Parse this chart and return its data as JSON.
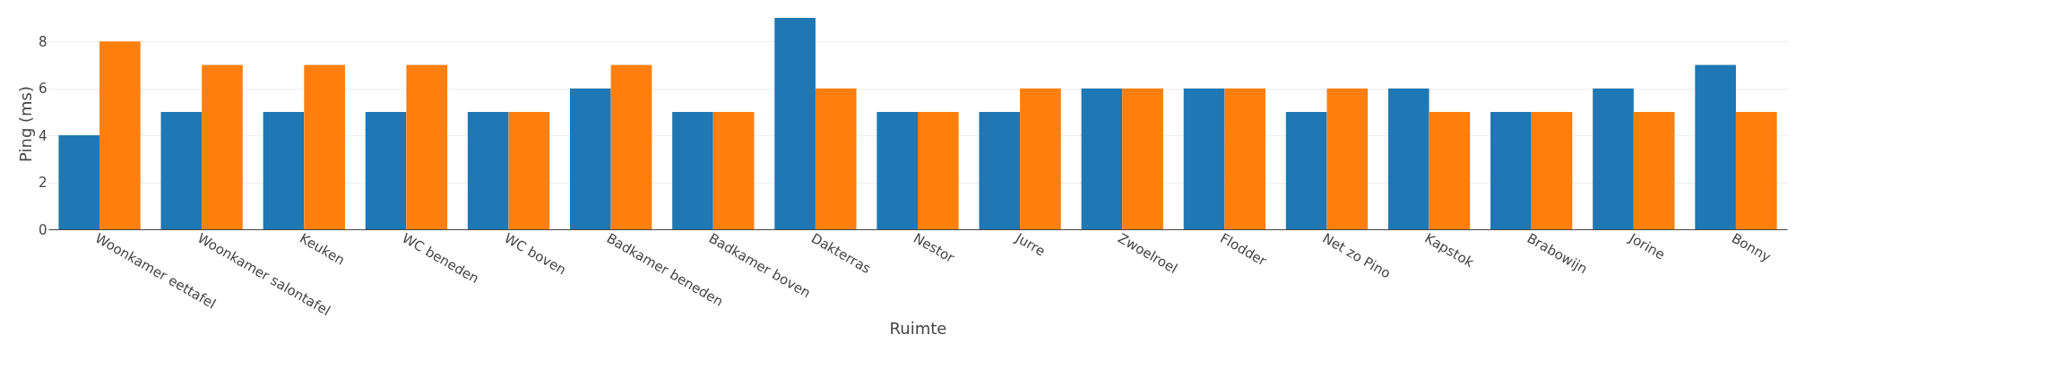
{
  "chart_data": {
    "type": "bar",
    "xlabel": "Ruimte",
    "ylabel": "Ping (ms)",
    "categories": [
      "Woonkamer eettafel",
      "Woonkamer salontafel",
      "Keuken",
      "WC beneden",
      "WC boven",
      "Badkamer beneden",
      "Badkamer boven",
      "Dakterras",
      "Nestor",
      "Jurre",
      "Zwoelroel",
      "Flodder",
      "Net zo Pino",
      "Kapstok",
      "Brabowijn",
      "Jorine",
      "Bonny"
    ],
    "series": [
      {
        "color": "#1f77b4",
        "values": [
          4,
          5,
          5,
          5,
          5,
          6,
          5,
          9,
          5,
          5,
          6,
          6,
          5,
          6,
          5,
          6,
          7
        ]
      },
      {
        "color": "#ff7f0e",
        "values": [
          8,
          7,
          7,
          7,
          5,
          7,
          5,
          6,
          5,
          6,
          6,
          6,
          6,
          5,
          5,
          5,
          5
        ]
      }
    ],
    "ylim": [
      0,
      9
    ],
    "yticks": [
      0,
      2,
      4,
      6,
      8
    ],
    "grid": "y"
  }
}
